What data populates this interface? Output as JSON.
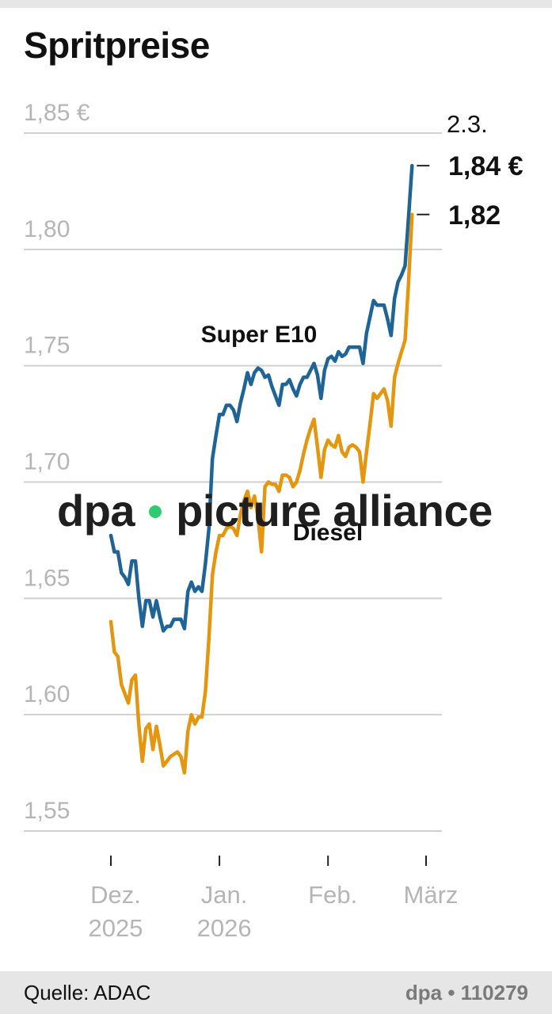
{
  "title": "Spritpreise",
  "footer": {
    "source": "Quelle: ADAC",
    "credit": "dpa • 110279"
  },
  "watermark": {
    "left": "dpa",
    "right": "picture alliance"
  },
  "colors": {
    "super": "#1f6496",
    "diesel": "#e5960f",
    "grid": "#d0d0d0",
    "tick_label": "#b5b5b5"
  },
  "chart_data": {
    "type": "line",
    "title": "Spritpreise",
    "ylim": [
      1.55,
      1.85
    ],
    "yticks": [
      {
        "value": 1.85,
        "label": "1,85 €"
      },
      {
        "value": 1.8,
        "label": "1,80"
      },
      {
        "value": 1.75,
        "label": "1,75"
      },
      {
        "value": 1.7,
        "label": "1,70"
      },
      {
        "value": 1.65,
        "label": "1,65"
      },
      {
        "value": 1.6,
        "label": "1,60"
      },
      {
        "value": 1.55,
        "label": "1,55"
      }
    ],
    "xlim": [
      "2025-11-30",
      "2026-03-02"
    ],
    "xticks": [
      {
        "date": "2025-12-01",
        "label1": "Dez.",
        "label2": "2025"
      },
      {
        "date": "2026-01-01",
        "label1": "Jan.",
        "label2": "2026"
      },
      {
        "date": "2026-02-01",
        "label1": "Feb.",
        "label2": ""
      },
      {
        "date": "2026-03-01",
        "label1": "März",
        "label2": ""
      }
    ],
    "grid": true,
    "end_date_label": "2.3.",
    "series": [
      {
        "name": "Super E10",
        "color": "#1f6496",
        "end_label": "1,84 €",
        "points": [
          [
            "2025-12-01",
            1.677
          ],
          [
            "2025-12-02",
            1.67
          ],
          [
            "2025-12-03",
            1.67
          ],
          [
            "2025-12-04",
            1.661
          ],
          [
            "2025-12-05",
            1.659
          ],
          [
            "2025-12-06",
            1.656
          ],
          [
            "2025-12-07",
            1.666
          ],
          [
            "2025-12-08",
            1.666
          ],
          [
            "2025-12-09",
            1.65
          ],
          [
            "2025-12-10",
            1.638
          ],
          [
            "2025-12-11",
            1.649
          ],
          [
            "2025-12-12",
            1.649
          ],
          [
            "2025-12-13",
            1.642
          ],
          [
            "2025-12-14",
            1.649
          ],
          [
            "2025-12-15",
            1.642
          ],
          [
            "2025-12-16",
            1.636
          ],
          [
            "2025-12-17",
            1.638
          ],
          [
            "2025-12-18",
            1.638
          ],
          [
            "2025-12-19",
            1.641
          ],
          [
            "2025-12-20",
            1.641
          ],
          [
            "2025-12-21",
            1.641
          ],
          [
            "2025-12-22",
            1.637
          ],
          [
            "2025-12-23",
            1.653
          ],
          [
            "2025-12-24",
            1.657
          ],
          [
            "2025-12-25",
            1.653
          ],
          [
            "2025-12-26",
            1.655
          ],
          [
            "2025-12-27",
            1.653
          ],
          [
            "2025-12-28",
            1.665
          ],
          [
            "2025-12-29",
            1.68
          ],
          [
            "2025-12-30",
            1.71
          ],
          [
            "2025-12-31",
            1.72
          ],
          [
            "2026-01-01",
            1.729
          ],
          [
            "2026-01-02",
            1.729
          ],
          [
            "2026-01-03",
            1.733
          ],
          [
            "2026-01-04",
            1.733
          ],
          [
            "2026-01-05",
            1.731
          ],
          [
            "2026-01-06",
            1.726
          ],
          [
            "2026-01-07",
            1.734
          ],
          [
            "2026-01-08",
            1.74
          ],
          [
            "2026-01-09",
            1.747
          ],
          [
            "2026-01-10",
            1.742
          ],
          [
            "2026-01-11",
            1.747
          ],
          [
            "2026-01-12",
            1.749
          ],
          [
            "2026-01-13",
            1.748
          ],
          [
            "2026-01-14",
            1.745
          ],
          [
            "2026-01-15",
            1.746
          ],
          [
            "2026-01-16",
            1.741
          ],
          [
            "2026-01-17",
            1.737
          ],
          [
            "2026-01-18",
            1.733
          ],
          [
            "2026-01-19",
            1.742
          ],
          [
            "2026-01-20",
            1.742
          ],
          [
            "2026-01-21",
            1.744
          ],
          [
            "2026-01-22",
            1.74
          ],
          [
            "2026-01-23",
            1.737
          ],
          [
            "2026-01-24",
            1.742
          ],
          [
            "2026-01-25",
            1.745
          ],
          [
            "2026-01-26",
            1.745
          ],
          [
            "2026-01-27",
            1.748
          ],
          [
            "2026-01-28",
            1.751
          ],
          [
            "2026-01-29",
            1.746
          ],
          [
            "2026-01-30",
            1.736
          ],
          [
            "2026-01-31",
            1.748
          ],
          [
            "2026-02-01",
            1.753
          ],
          [
            "2026-02-02",
            1.754
          ],
          [
            "2026-02-03",
            1.752
          ],
          [
            "2026-02-04",
            1.756
          ],
          [
            "2026-02-05",
            1.754
          ],
          [
            "2026-02-06",
            1.755
          ],
          [
            "2026-02-07",
            1.758
          ],
          [
            "2026-02-08",
            1.758
          ],
          [
            "2026-02-09",
            1.758
          ],
          [
            "2026-02-10",
            1.758
          ],
          [
            "2026-02-11",
            1.751
          ],
          [
            "2026-02-12",
            1.764
          ],
          [
            "2026-02-13",
            1.771
          ],
          [
            "2026-02-14",
            1.778
          ],
          [
            "2026-02-15",
            1.776
          ],
          [
            "2026-02-16",
            1.776
          ],
          [
            "2026-02-17",
            1.776
          ],
          [
            "2026-02-18",
            1.77
          ],
          [
            "2026-02-19",
            1.763
          ],
          [
            "2026-02-20",
            1.779
          ],
          [
            "2026-02-21",
            1.786
          ],
          [
            "2026-02-22",
            1.789
          ],
          [
            "2026-02-23",
            1.793
          ],
          [
            "2026-02-24",
            1.814
          ],
          [
            "2026-02-25",
            1.836
          ]
        ]
      },
      {
        "name": "Diesel",
        "color": "#e5960f",
        "end_label": "1,82",
        "points": [
          [
            "2025-12-01",
            1.64
          ],
          [
            "2025-12-02",
            1.627
          ],
          [
            "2025-12-03",
            1.625
          ],
          [
            "2025-12-04",
            1.613
          ],
          [
            "2025-12-05",
            1.609
          ],
          [
            "2025-12-06",
            1.605
          ],
          [
            "2025-12-07",
            1.615
          ],
          [
            "2025-12-08",
            1.617
          ],
          [
            "2025-12-09",
            1.595
          ],
          [
            "2025-12-10",
            1.58
          ],
          [
            "2025-12-11",
            1.594
          ],
          [
            "2025-12-12",
            1.596
          ],
          [
            "2025-12-13",
            1.585
          ],
          [
            "2025-12-14",
            1.595
          ],
          [
            "2025-12-15",
            1.587
          ],
          [
            "2025-12-16",
            1.578
          ],
          [
            "2025-12-17",
            1.58
          ],
          [
            "2025-12-18",
            1.582
          ],
          [
            "2025-12-19",
            1.583
          ],
          [
            "2025-12-20",
            1.584
          ],
          [
            "2025-12-21",
            1.582
          ],
          [
            "2025-12-22",
            1.575
          ],
          [
            "2025-12-23",
            1.593
          ],
          [
            "2025-12-24",
            1.6
          ],
          [
            "2025-12-25",
            1.596
          ],
          [
            "2025-12-26",
            1.599
          ],
          [
            "2025-12-27",
            1.599
          ],
          [
            "2025-12-28",
            1.61
          ],
          [
            "2025-12-29",
            1.633
          ],
          [
            "2025-12-30",
            1.66
          ],
          [
            "2025-12-31",
            1.67
          ],
          [
            "2026-01-01",
            1.677
          ],
          [
            "2026-01-02",
            1.677
          ],
          [
            "2026-01-03",
            1.68
          ],
          [
            "2026-01-04",
            1.681
          ],
          [
            "2026-01-05",
            1.68
          ],
          [
            "2026-01-06",
            1.677
          ],
          [
            "2026-01-07",
            1.686
          ],
          [
            "2026-01-08",
            1.692
          ],
          [
            "2026-01-09",
            1.696
          ],
          [
            "2026-01-10",
            1.689
          ],
          [
            "2026-01-11",
            1.694
          ],
          [
            "2026-01-12",
            1.685
          ],
          [
            "2026-01-13",
            1.67
          ],
          [
            "2026-01-14",
            1.698
          ],
          [
            "2026-01-15",
            1.7
          ],
          [
            "2026-01-16",
            1.699
          ],
          [
            "2026-01-17",
            1.699
          ],
          [
            "2026-01-18",
            1.696
          ],
          [
            "2026-01-19",
            1.703
          ],
          [
            "2026-01-20",
            1.703
          ],
          [
            "2026-01-21",
            1.702
          ],
          [
            "2026-01-22",
            1.698
          ],
          [
            "2026-01-23",
            1.7
          ],
          [
            "2026-01-24",
            1.705
          ],
          [
            "2026-01-25",
            1.712
          ],
          [
            "2026-01-26",
            1.718
          ],
          [
            "2026-01-27",
            1.723
          ],
          [
            "2026-01-28",
            1.727
          ],
          [
            "2026-01-29",
            1.715
          ],
          [
            "2026-01-30",
            1.702
          ],
          [
            "2026-01-31",
            1.714
          ],
          [
            "2026-02-01",
            1.718
          ],
          [
            "2026-02-02",
            1.716
          ],
          [
            "2026-02-03",
            1.715
          ],
          [
            "2026-02-04",
            1.72
          ],
          [
            "2026-02-05",
            1.713
          ],
          [
            "2026-02-06",
            1.711
          ],
          [
            "2026-02-07",
            1.715
          ],
          [
            "2026-02-08",
            1.716
          ],
          [
            "2026-02-09",
            1.715
          ],
          [
            "2026-02-10",
            1.713
          ],
          [
            "2026-02-11",
            1.7
          ],
          [
            "2026-02-12",
            1.713
          ],
          [
            "2026-02-13",
            1.725
          ],
          [
            "2026-02-14",
            1.738
          ],
          [
            "2026-02-15",
            1.736
          ],
          [
            "2026-02-16",
            1.738
          ],
          [
            "2026-02-17",
            1.74
          ],
          [
            "2026-02-18",
            1.735
          ],
          [
            "2026-02-19",
            1.724
          ],
          [
            "2026-02-20",
            1.745
          ],
          [
            "2026-02-21",
            1.751
          ],
          [
            "2026-02-22",
            1.756
          ],
          [
            "2026-02-23",
            1.761
          ],
          [
            "2026-02-24",
            1.786
          ],
          [
            "2026-02-25",
            1.815
          ]
        ]
      }
    ]
  }
}
